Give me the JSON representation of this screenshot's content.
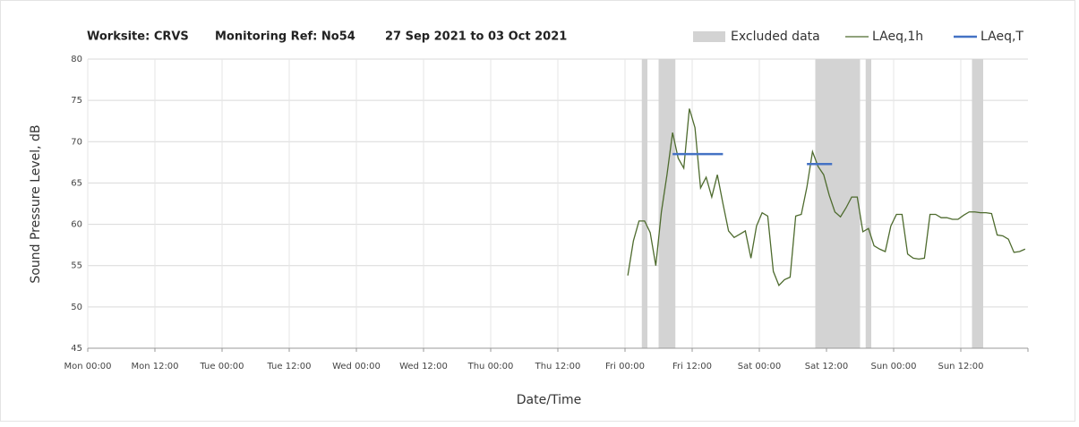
{
  "chart_data": {
    "type": "line",
    "title": [
      "Worksite: CRVS",
      "Monitoring Ref: No54",
      "27 Sep 2021 to 03 Oct 2021"
    ],
    "xlabel": "Date/Time",
    "ylabel": "Sound Pressure Level, dB",
    "xlim": [
      0,
      168
    ],
    "xticks": [
      {
        "value": 0,
        "label": "Mon 00:00"
      },
      {
        "value": 12,
        "label": "Mon 12:00"
      },
      {
        "value": 24,
        "label": "Tue 00:00"
      },
      {
        "value": 36,
        "label": "Tue 12:00"
      },
      {
        "value": 48,
        "label": "Wed 00:00"
      },
      {
        "value": 60,
        "label": "Wed 12:00"
      },
      {
        "value": 72,
        "label": "Thu 00:00"
      },
      {
        "value": 84,
        "label": "Thu 12:00"
      },
      {
        "value": 96,
        "label": "Fri 00:00"
      },
      {
        "value": 108,
        "label": "Fri 12:00"
      },
      {
        "value": 120,
        "label": "Sat 00:00"
      },
      {
        "value": 132,
        "label": "Sat 12:00"
      },
      {
        "value": 144,
        "label": "Sun 00:00"
      },
      {
        "value": 156,
        "label": "Sun 12:00"
      }
    ],
    "ylim": [
      45,
      80
    ],
    "yticks": [
      45,
      50,
      55,
      60,
      65,
      70,
      75,
      80
    ],
    "grid": true,
    "legend": "top-right",
    "series": [
      {
        "name": "Excluded data",
        "color": "#d3d3d3",
        "ranges": [
          [
            99,
            100
          ],
          [
            102,
            105
          ],
          [
            130,
            138
          ],
          [
            139,
            140
          ],
          [
            158,
            160
          ]
        ]
      },
      {
        "name": "LAeq,1h",
        "color": "#4e6b2e",
        "x": [
          96.5,
          97.5,
          98.5,
          99.5,
          100.5,
          101.5,
          102.5,
          103.5,
          104.5,
          105.5,
          106.5,
          107.5,
          108.5,
          109.5,
          110.5,
          111.5,
          112.5,
          113.5,
          114.5,
          115.5,
          116.5,
          117.5,
          118.5,
          119.5,
          120.5,
          121.5,
          122.5,
          123.5,
          124.5,
          125.5,
          126.5,
          127.5,
          128.5,
          129.5,
          130.5,
          131.5,
          132.5,
          133.5,
          134.5,
          135.5,
          136.5,
          137.5,
          138.5,
          139.5,
          140.5,
          141.5,
          142.5,
          143.5,
          144.5,
          145.5,
          146.5,
          147.5,
          148.5,
          149.5,
          150.5,
          151.5,
          152.5,
          153.5,
          154.5,
          155.5,
          156.5,
          157.5,
          158.5,
          159.5,
          160.5,
          161.5,
          162.5,
          163.5,
          164.5,
          165.5,
          166.5,
          167.5
        ],
        "values": [
          53.8,
          58,
          60.4,
          60.4,
          59,
          55,
          61.5,
          66,
          71.1,
          68,
          66.8,
          74,
          71.7,
          64.4,
          65.7,
          63.3,
          66,
          62.5,
          59.2,
          58.4,
          58.8,
          59.2,
          55.9,
          59.8,
          61.4,
          61,
          54.3,
          52.6,
          53.3,
          53.6,
          61,
          61.2,
          64.5,
          68.8,
          67,
          66,
          63.5,
          61.5,
          60.9,
          62,
          63.3,
          63.3,
          59.1,
          59.5,
          57.4,
          57,
          56.7,
          59.8,
          61.2,
          61.2,
          56.4,
          55.9,
          55.8,
          55.9,
          61.2,
          61.2,
          60.8,
          60.8,
          60.6,
          60.6,
          61.1,
          61.5,
          61.5,
          61.4,
          61.4,
          61.3,
          58.7,
          58.6,
          58.2,
          56.6,
          56.7,
          57
        ]
      },
      {
        "name": "LAeq,T",
        "color": "#4472c4",
        "segments": [
          {
            "x": [
              104.5,
              113.5
            ],
            "value": 68.5
          },
          {
            "x": [
              128.5,
              133
            ],
            "value": 67.3
          }
        ]
      }
    ]
  }
}
